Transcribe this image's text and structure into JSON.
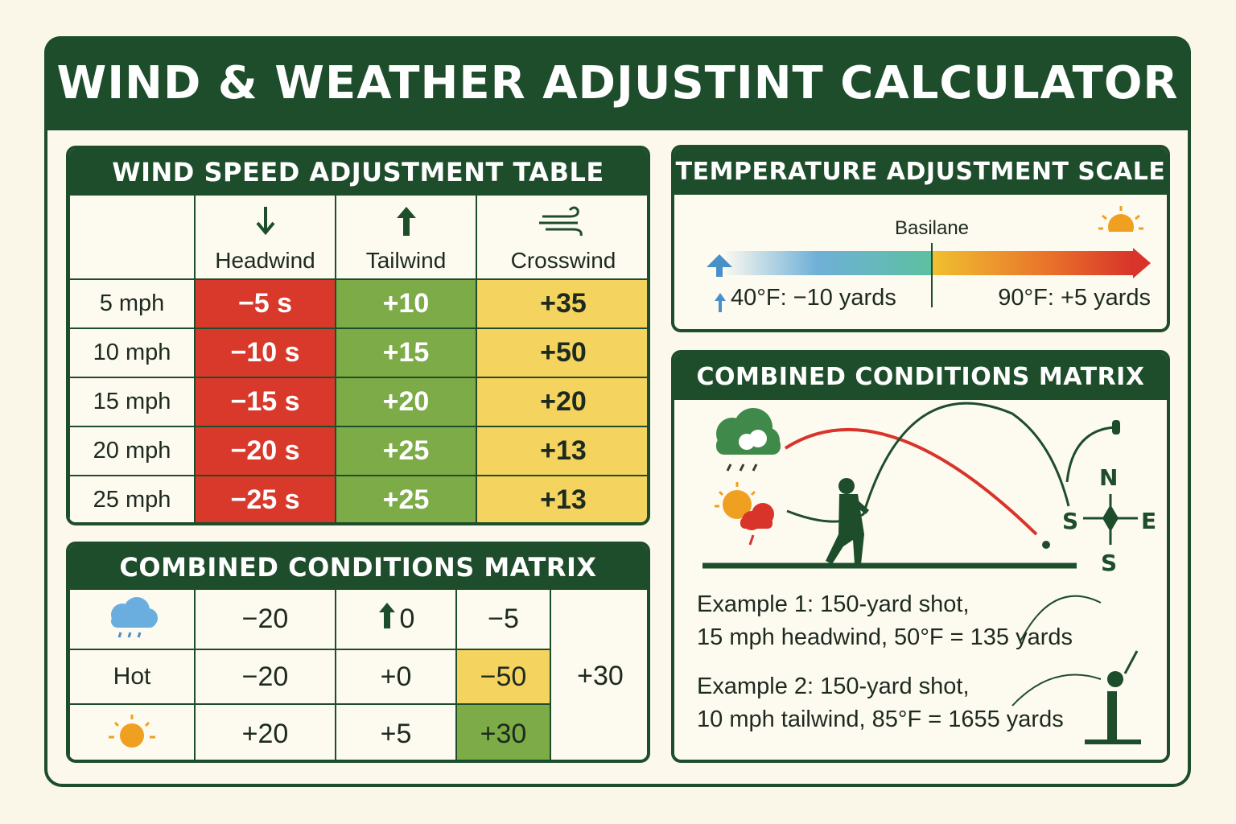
{
  "header": {
    "title": "WIND & WEATHER ADJUSTINT CALCULATOR"
  },
  "wind_table": {
    "title": "WIND SPEED ADJUSTMENT TABLE",
    "columns": [
      "Headwind",
      "Tailwind",
      "Crosswind"
    ],
    "rows": [
      [
        "5 mph",
        "−5 s",
        "+10",
        "+35"
      ],
      [
        "10 mph",
        "−10 s",
        "+15",
        "+50"
      ],
      [
        "15 mph",
        "−15 s",
        "+20",
        "+20"
      ],
      [
        "20 mph",
        "−20 s",
        "+25",
        "+13"
      ],
      [
        "25 mph",
        "−25 s",
        "+25",
        "+13"
      ]
    ]
  },
  "matrix": {
    "title": "COMBINED CONDITIONS MATRIX",
    "row_label": "Hot",
    "rows": [
      [
        "−20",
        "0",
        "−5"
      ],
      [
        "−20",
        "+0",
        "−50"
      ],
      [
        "+20",
        "+5",
        "+30"
      ]
    ],
    "side_value": "+30"
  },
  "temperature": {
    "title": "TEMPERATURE ADJUSTMENT SCALE",
    "baseline_label": "Basilane",
    "cold_label": "40°F: −10 yards",
    "hot_label": "90°F: +5 yards"
  },
  "combined": {
    "title": "COMBINED CONDITIONS MATRIX",
    "compass": {
      "north": "N",
      "west": "S",
      "east": "E",
      "south": "S"
    },
    "examples": [
      [
        "Example 1: 150-yard shot,",
        "15 mph headwind, 50°F = 135 yards"
      ],
      [
        "Example 2: 150-yard shot,",
        "10 mph tailwind, 85°F = 1655 yards"
      ]
    ]
  }
}
